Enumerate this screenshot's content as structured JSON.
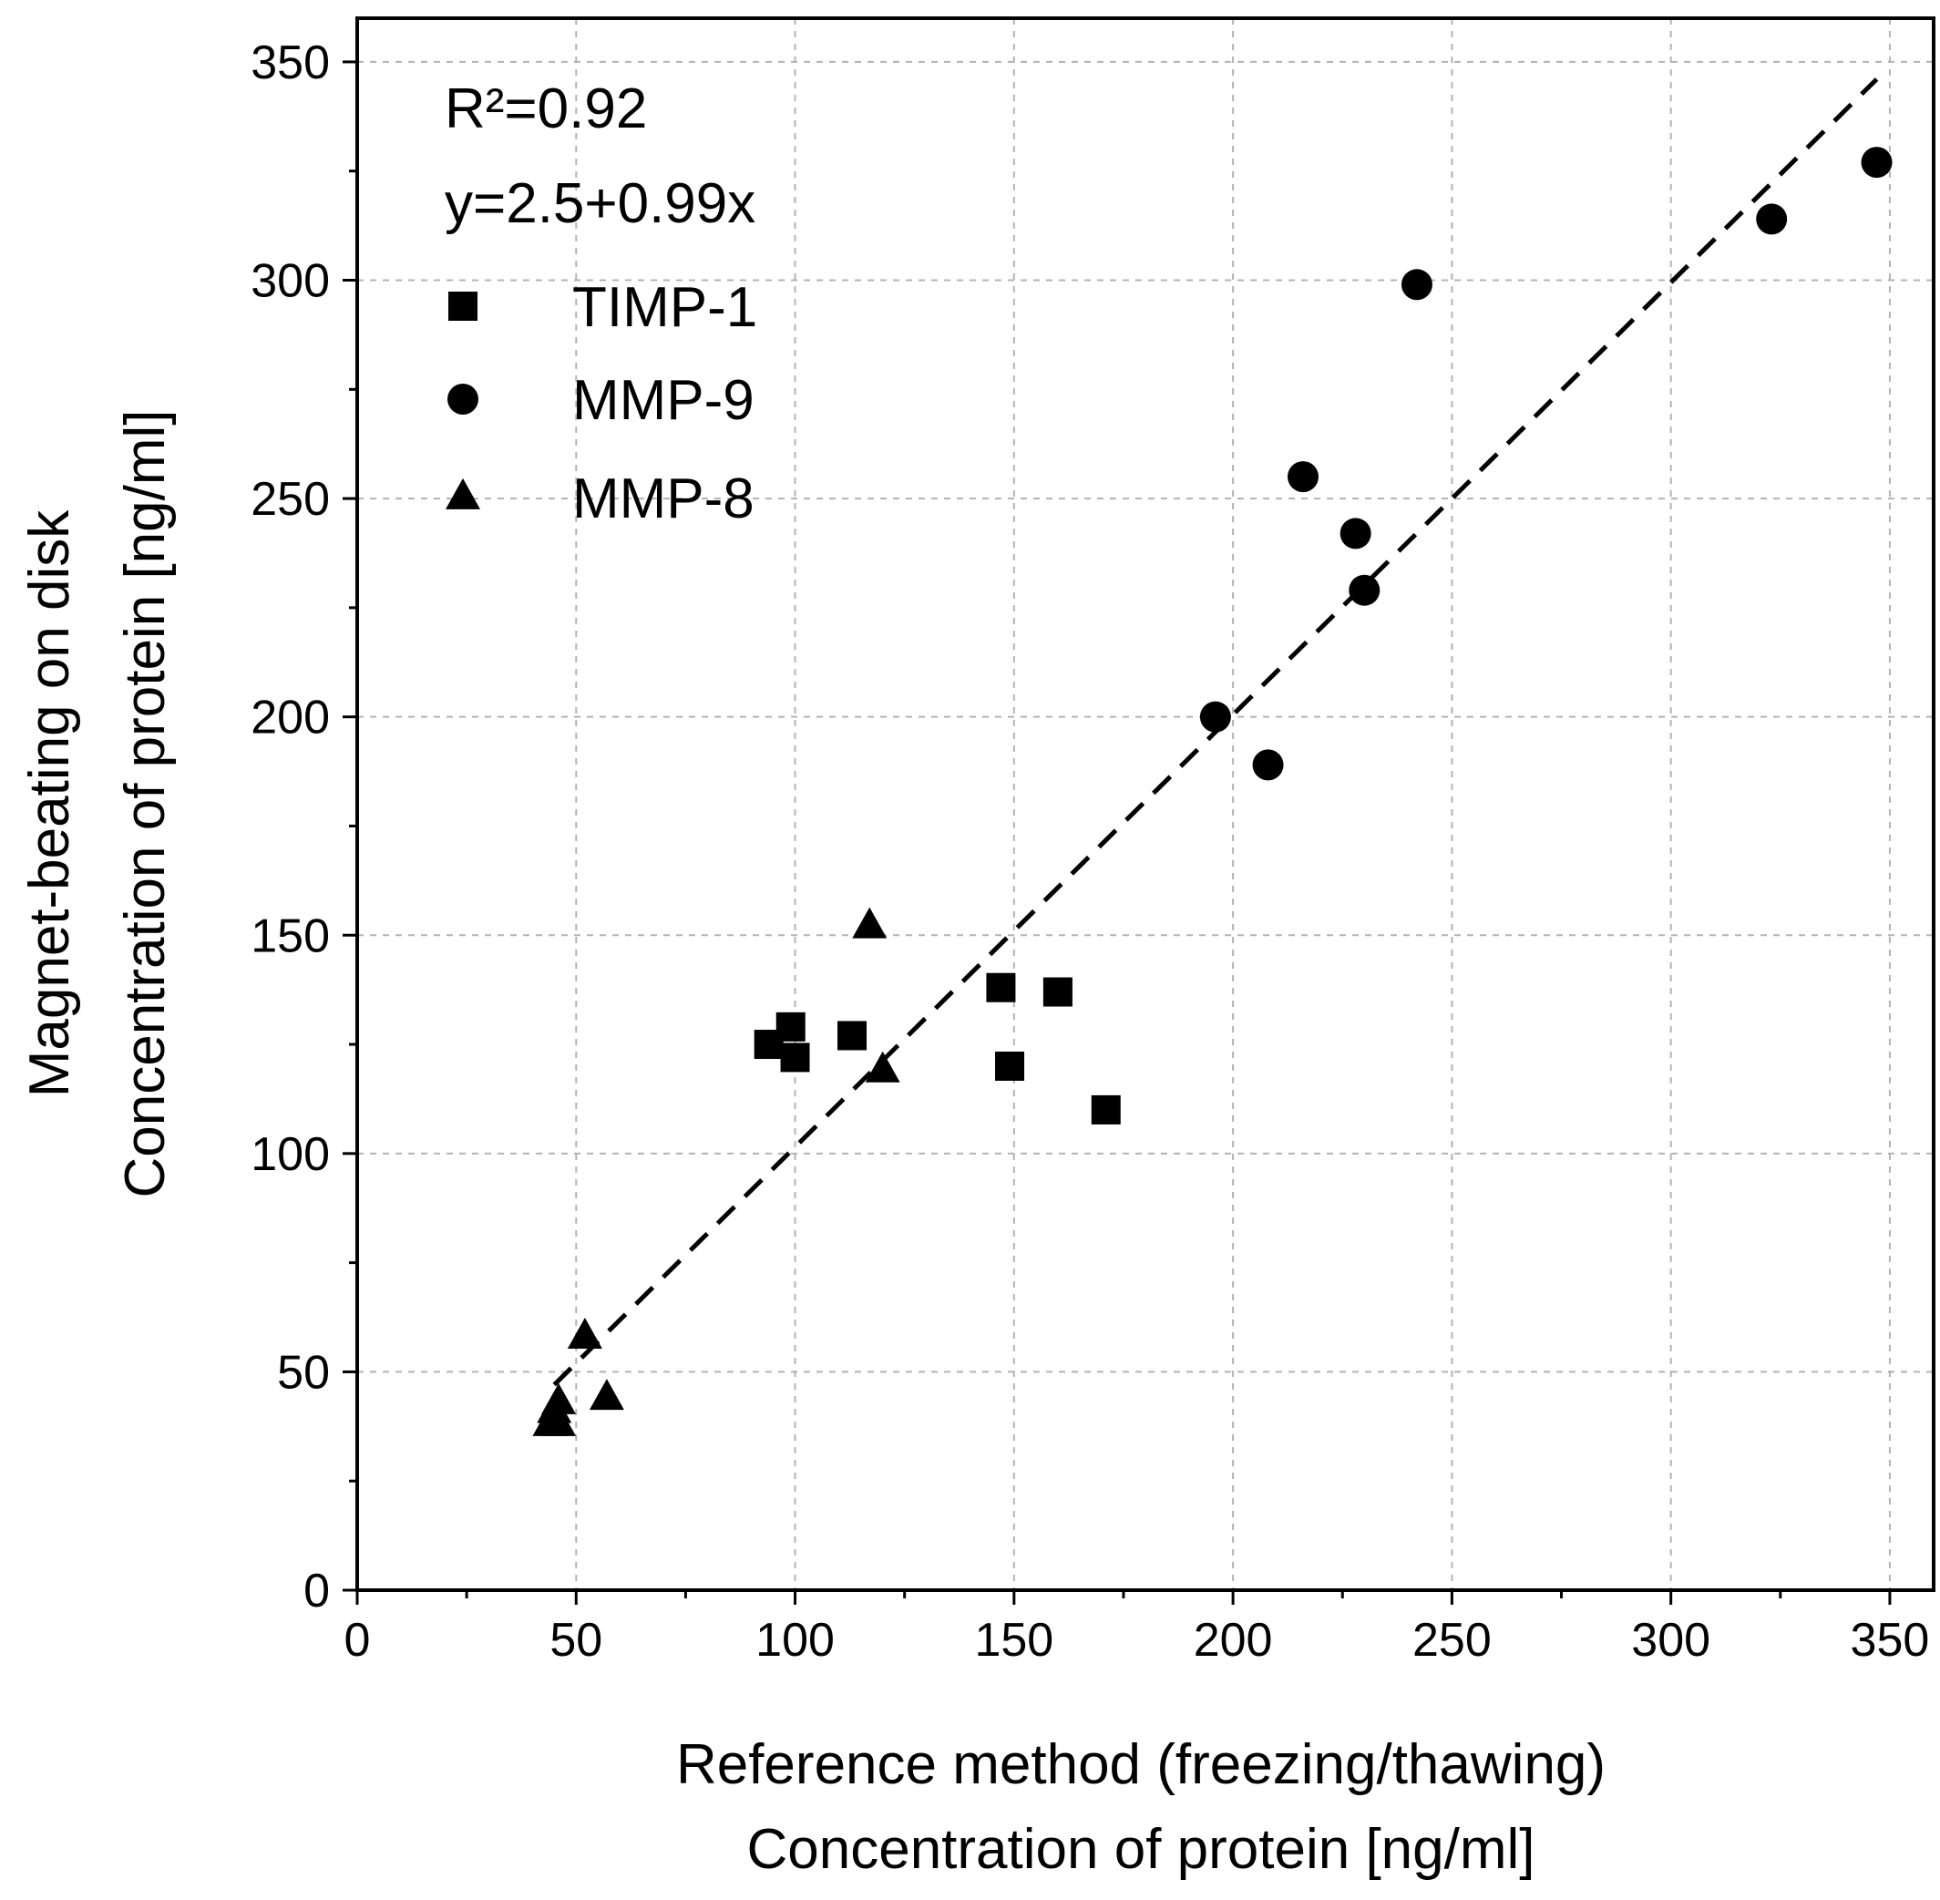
{
  "chart_data": {
    "type": "scatter",
    "title": "",
    "xlabel": [
      "Reference method (freezing/thawing)",
      "Concentration of protein [ng/ml]"
    ],
    "ylabel": [
      "Magnet-beating on disk",
      "Concentration of protein [ng/ml]"
    ],
    "xlim": [
      0,
      360
    ],
    "ylim": [
      0,
      360
    ],
    "xticks": [
      0,
      50,
      100,
      150,
      200,
      250,
      300,
      350
    ],
    "yticks": [
      0,
      50,
      100,
      150,
      200,
      250,
      300,
      350
    ],
    "grid": true,
    "legend_position": "top-left",
    "annotations": [
      "R²=0.92",
      "y=2.5+0.99x"
    ],
    "fit": {
      "intercept": 2.5,
      "slope": 0.99,
      "x_range": [
        45,
        347
      ],
      "style": "dashed"
    },
    "series": [
      {
        "name": "TIMP-1",
        "marker": "square",
        "points": [
          [
            94,
            125
          ],
          [
            99,
            129
          ],
          [
            100,
            122
          ],
          [
            113,
            127
          ],
          [
            147,
            138
          ],
          [
            149,
            120
          ],
          [
            160,
            137
          ],
          [
            171,
            110
          ]
        ]
      },
      {
        "name": "MMP-9",
        "marker": "circle",
        "points": [
          [
            196,
            200
          ],
          [
            208,
            189
          ],
          [
            216,
            255
          ],
          [
            228,
            242
          ],
          [
            230,
            229
          ],
          [
            242,
            299
          ],
          [
            323,
            314
          ],
          [
            347,
            327
          ]
        ]
      },
      {
        "name": "MMP-8",
        "marker": "triangle",
        "points": [
          [
            44,
            38
          ],
          [
            46,
            38
          ],
          [
            45,
            41
          ],
          [
            46,
            43
          ],
          [
            52,
            58
          ],
          [
            57,
            44
          ],
          [
            117,
            152
          ],
          [
            120,
            119
          ]
        ]
      }
    ]
  }
}
